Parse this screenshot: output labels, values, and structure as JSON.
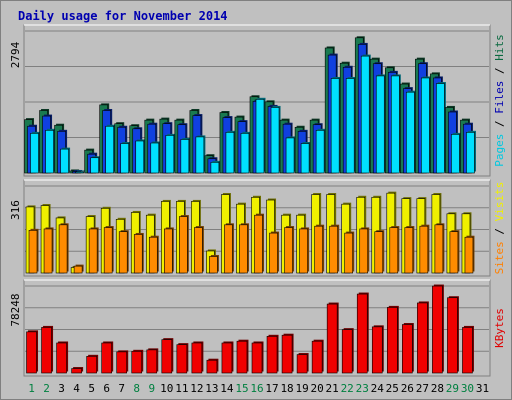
{
  "chart_data": {
    "type": "bar",
    "title": "Daily usage for November 2014",
    "categories": [
      "1",
      "2",
      "3",
      "4",
      "5",
      "6",
      "7",
      "8",
      "9",
      "10",
      "11",
      "12",
      "13",
      "14",
      "15",
      "16",
      "17",
      "18",
      "19",
      "20",
      "21",
      "22",
      "23",
      "24",
      "25",
      "26",
      "27",
      "28",
      "29",
      "30",
      "31"
    ],
    "weekend_days": [
      "1",
      "2",
      "8",
      "9",
      "15",
      "16",
      "22",
      "23",
      "29",
      "30"
    ],
    "colors": {
      "background": "#c0c0c0",
      "title": "#0000b0",
      "pages": "#00e0ff",
      "files": "#1040e0",
      "hits": "#1a7a50",
      "visits": "#f0f000",
      "sites": "#ff8c00",
      "kbytes": "#f00000",
      "weekday_label": "#000000",
      "weekend_label": "#008040"
    },
    "panels": [
      {
        "id": "hits-panel",
        "ymax_label": "2794",
        "ymax": 2794,
        "right_labels": [
          {
            "text": "Pages",
            "color": "#00c8e0"
          },
          {
            "text": "Files",
            "color": "#0000b0"
          },
          {
            "text": "Hits",
            "color": "#0a6a40"
          }
        ],
        "series": [
          {
            "name": "Hits",
            "values": [
              1050,
              1230,
              940,
              40,
              450,
              1340,
              970,
              930,
              1040,
              1060,
              1040,
              1230,
              340,
              1190,
              1100,
              1500,
              1400,
              1040,
              900,
              1040,
              2460,
              2160,
              2660,
              2240,
              2070,
              1750,
              2240,
              1950,
              1290,
              1040,
              0
            ]
          },
          {
            "name": "Files",
            "values": [
              920,
              1120,
              820,
              30,
              370,
              1230,
              900,
              870,
              960,
              970,
              950,
              1130,
              280,
              1090,
              1010,
              1410,
              1310,
              960,
              820,
              950,
              2320,
              2080,
              2530,
              2150,
              1980,
              1660,
              2150,
              1870,
              1200,
              960,
              0
            ]
          },
          {
            "name": "Pages",
            "values": [
              780,
              840,
              470,
              20,
              300,
              920,
              580,
              630,
              590,
              740,
              660,
              710,
              210,
              800,
              780,
              1450,
              1290,
              690,
              580,
              840,
              1860,
              1860,
              2300,
              1910,
              1910,
              1590,
              1870,
              1760,
              760,
              800,
              0
            ]
          }
        ]
      },
      {
        "id": "visits-panel",
        "ymax_label": "316",
        "ymax": 316,
        "right_labels": [
          {
            "text": "Sites",
            "color": "#ff8000"
          },
          {
            "text": "Visits",
            "color": "#f0f000"
          }
        ],
        "series": [
          {
            "name": "Visits",
            "values": [
              240,
              245,
              200,
              20,
              205,
              235,
              195,
              220,
              210,
              260,
              260,
              260,
              80,
              285,
              250,
              275,
              265,
              210,
              210,
              285,
              285,
              250,
              275,
              275,
              290,
              270,
              270,
              285,
              215,
              215,
              0
            ]
          },
          {
            "name": "Sites",
            "values": [
              155,
              160,
              175,
              25,
              160,
              165,
              150,
              140,
              130,
              160,
              205,
              165,
              60,
              175,
              175,
              210,
              145,
              165,
              160,
              170,
              170,
              145,
              160,
              150,
              165,
              165,
              170,
              175,
              150,
              130,
              0
            ]
          }
        ]
      },
      {
        "id": "kbytes-panel",
        "ymax_label": "78248",
        "ymax": 78248,
        "right_labels": [
          {
            "text": "KBytes",
            "color": "#e00000"
          }
        ],
        "series": [
          {
            "name": "KBytes",
            "values": [
              37000,
              41000,
              27000,
              4000,
              15000,
              27000,
              19000,
              19500,
              20800,
              30000,
              25500,
              27000,
              11500,
              27000,
              28600,
              27000,
              33000,
              34000,
              16600,
              28600,
              62000,
              39000,
              71000,
              41500,
              59000,
              43600,
              63000,
              78200,
              67700,
              41000,
              0
            ]
          }
        ]
      }
    ]
  }
}
